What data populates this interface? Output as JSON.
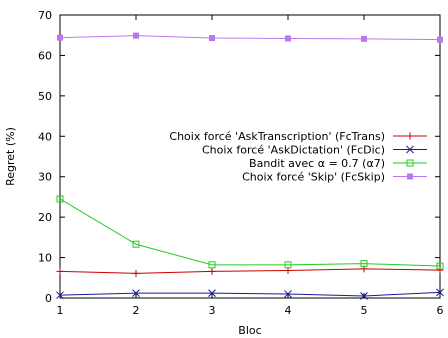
{
  "chart_data": {
    "type": "line",
    "xlabel": "Bloc",
    "ylabel": "Regret (%)",
    "x": [
      1,
      2,
      3,
      4,
      5,
      6
    ],
    "xlim": [
      1,
      6
    ],
    "ylim": [
      0,
      70
    ],
    "yticks": [
      0,
      10,
      20,
      30,
      40,
      50,
      60,
      70
    ],
    "xticks": [
      1,
      2,
      3,
      4,
      5,
      6
    ],
    "legend_position": "right",
    "grid": false,
    "series": [
      {
        "name": "Choix forcé 'AskTranscription' (FcTrans)",
        "color": "#cc0000",
        "marker": "plus",
        "values": [
          6.6,
          6.1,
          6.6,
          6.8,
          7.2,
          6.9
        ]
      },
      {
        "name": "Choix forcé 'AskDictation' (FcDic)",
        "color": "#1a1a99",
        "marker": "x",
        "values": [
          0.7,
          1.2,
          1.2,
          1.0,
          0.5,
          1.4
        ]
      },
      {
        "name": "Bandit avec α = 0.7 (α7)",
        "color": "#22cc22",
        "marker": "square-open",
        "values": [
          24.5,
          13.3,
          8.2,
          8.2,
          8.5,
          7.9
        ]
      },
      {
        "name": "Choix forcé 'Skip' (FcSkip)",
        "color": "#bb77ee",
        "marker": "square-filled",
        "values": [
          64.4,
          64.9,
          64.3,
          64.2,
          64.1,
          63.9
        ]
      }
    ]
  }
}
